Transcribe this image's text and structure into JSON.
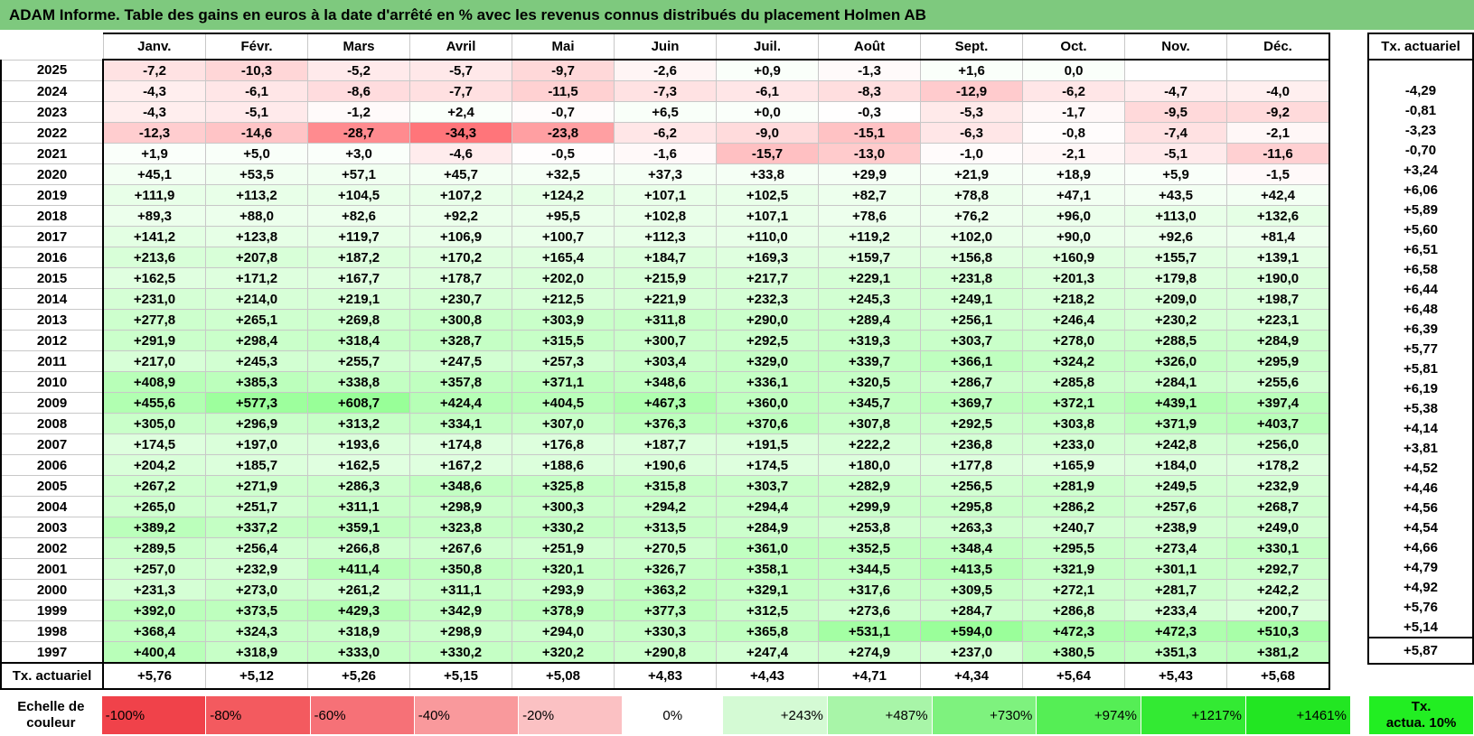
{
  "title": "ADAM Informe. Table des gains en euros à la date d'arrêté en % avec les revenus connus distribués du placement Holmen AB",
  "months": [
    "Janv.",
    "Févr.",
    "Mars",
    "Avril",
    "Mai",
    "Juin",
    "Juil.",
    "Août",
    "Sept.",
    "Oct.",
    "Nov.",
    "Déc."
  ],
  "rate_header": "Tx. actuariel",
  "rows": [
    {
      "year": "2025",
      "values": [
        "-7,2",
        "-10,3",
        "-5,2",
        "-5,7",
        "-9,7",
        "-2,6",
        "+0,9",
        "-1,3",
        "+1,6",
        "0,0",
        "",
        ""
      ],
      "rate": ""
    },
    {
      "year": "2024",
      "values": [
        "-4,3",
        "-6,1",
        "-8,6",
        "-7,7",
        "-11,5",
        "-7,3",
        "-6,1",
        "-8,3",
        "-12,9",
        "-6,2",
        "-4,7",
        "-4,0"
      ],
      "rate": "-4,29"
    },
    {
      "year": "2023",
      "values": [
        "-4,3",
        "-5,1",
        "-1,2",
        "+2,4",
        "-0,7",
        "+6,5",
        "+0,0",
        "-0,3",
        "-5,3",
        "-1,7",
        "-9,5",
        "-9,2"
      ],
      "rate": "-0,81"
    },
    {
      "year": "2022",
      "values": [
        "-12,3",
        "-14,6",
        "-28,7",
        "-34,3",
        "-23,8",
        "-6,2",
        "-9,0",
        "-15,1",
        "-6,3",
        "-0,8",
        "-7,4",
        "-2,1"
      ],
      "rate": "-3,23"
    },
    {
      "year": "2021",
      "values": [
        "+1,9",
        "+5,0",
        "+3,0",
        "-4,6",
        "-0,5",
        "-1,6",
        "-15,7",
        "-13,0",
        "-1,0",
        "-2,1",
        "-5,1",
        "-11,6"
      ],
      "rate": "-0,70"
    },
    {
      "year": "2020",
      "values": [
        "+45,1",
        "+53,5",
        "+57,1",
        "+45,7",
        "+32,5",
        "+37,3",
        "+33,8",
        "+29,9",
        "+21,9",
        "+18,9",
        "+5,9",
        "-1,5"
      ],
      "rate": "+3,24"
    },
    {
      "year": "2019",
      "values": [
        "+111,9",
        "+113,2",
        "+104,5",
        "+107,2",
        "+124,2",
        "+107,1",
        "+102,5",
        "+82,7",
        "+78,8",
        "+47,1",
        "+43,5",
        "+42,4"
      ],
      "rate": "+6,06"
    },
    {
      "year": "2018",
      "values": [
        "+89,3",
        "+88,0",
        "+82,6",
        "+92,2",
        "+95,5",
        "+102,8",
        "+107,1",
        "+78,6",
        "+76,2",
        "+96,0",
        "+113,0",
        "+132,6"
      ],
      "rate": "+5,89"
    },
    {
      "year": "2017",
      "values": [
        "+141,2",
        "+123,8",
        "+119,7",
        "+106,9",
        "+100,7",
        "+112,3",
        "+110,0",
        "+119,2",
        "+102,0",
        "+90,0",
        "+92,6",
        "+81,4"
      ],
      "rate": "+5,60"
    },
    {
      "year": "2016",
      "values": [
        "+213,6",
        "+207,8",
        "+187,2",
        "+170,2",
        "+165,4",
        "+184,7",
        "+169,3",
        "+159,7",
        "+156,8",
        "+160,9",
        "+155,7",
        "+139,1"
      ],
      "rate": "+6,51"
    },
    {
      "year": "2015",
      "values": [
        "+162,5",
        "+171,2",
        "+167,7",
        "+178,7",
        "+202,0",
        "+215,9",
        "+217,7",
        "+229,1",
        "+231,8",
        "+201,3",
        "+179,8",
        "+190,0"
      ],
      "rate": "+6,58"
    },
    {
      "year": "2014",
      "values": [
        "+231,0",
        "+214,0",
        "+219,1",
        "+230,7",
        "+212,5",
        "+221,9",
        "+232,3",
        "+245,3",
        "+249,1",
        "+218,2",
        "+209,0",
        "+198,7"
      ],
      "rate": "+6,44"
    },
    {
      "year": "2013",
      "values": [
        "+277,8",
        "+265,1",
        "+269,8",
        "+300,8",
        "+303,9",
        "+311,8",
        "+290,0",
        "+289,4",
        "+256,1",
        "+246,4",
        "+230,2",
        "+223,1"
      ],
      "rate": "+6,48"
    },
    {
      "year": "2012",
      "values": [
        "+291,9",
        "+298,4",
        "+318,4",
        "+328,7",
        "+315,5",
        "+300,7",
        "+292,5",
        "+319,3",
        "+303,7",
        "+278,0",
        "+288,5",
        "+284,9"
      ],
      "rate": "+6,39"
    },
    {
      "year": "2011",
      "values": [
        "+217,0",
        "+245,3",
        "+255,7",
        "+247,5",
        "+257,3",
        "+303,4",
        "+329,0",
        "+339,7",
        "+366,1",
        "+324,2",
        "+326,0",
        "+295,9"
      ],
      "rate": "+5,77"
    },
    {
      "year": "2010",
      "values": [
        "+408,9",
        "+385,3",
        "+338,8",
        "+357,8",
        "+371,1",
        "+348,6",
        "+336,1",
        "+320,5",
        "+286,7",
        "+285,8",
        "+284,1",
        "+255,6"
      ],
      "rate": "+5,81"
    },
    {
      "year": "2009",
      "values": [
        "+455,6",
        "+577,3",
        "+608,7",
        "+424,4",
        "+404,5",
        "+467,3",
        "+360,0",
        "+345,7",
        "+369,7",
        "+372,1",
        "+439,1",
        "+397,4"
      ],
      "rate": "+6,19"
    },
    {
      "year": "2008",
      "values": [
        "+305,0",
        "+296,9",
        "+313,2",
        "+334,1",
        "+307,0",
        "+376,3",
        "+370,6",
        "+307,8",
        "+292,5",
        "+303,8",
        "+371,9",
        "+403,7"
      ],
      "rate": "+5,38"
    },
    {
      "year": "2007",
      "values": [
        "+174,5",
        "+197,0",
        "+193,6",
        "+174,8",
        "+176,8",
        "+187,7",
        "+191,5",
        "+222,2",
        "+236,8",
        "+233,0",
        "+242,8",
        "+256,0"
      ],
      "rate": "+4,14"
    },
    {
      "year": "2006",
      "values": [
        "+204,2",
        "+185,7",
        "+162,5",
        "+167,2",
        "+188,6",
        "+190,6",
        "+174,5",
        "+180,0",
        "+177,8",
        "+165,9",
        "+184,0",
        "+178,2"
      ],
      "rate": "+3,81"
    },
    {
      "year": "2005",
      "values": [
        "+267,2",
        "+271,9",
        "+286,3",
        "+348,6",
        "+325,8",
        "+315,8",
        "+303,7",
        "+282,9",
        "+256,5",
        "+281,9",
        "+249,5",
        "+232,9"
      ],
      "rate": "+4,52"
    },
    {
      "year": "2004",
      "values": [
        "+265,0",
        "+251,7",
        "+311,1",
        "+298,9",
        "+300,3",
        "+294,2",
        "+294,4",
        "+299,9",
        "+295,8",
        "+286,2",
        "+257,6",
        "+268,7"
      ],
      "rate": "+4,46"
    },
    {
      "year": "2003",
      "values": [
        "+389,2",
        "+337,2",
        "+359,1",
        "+323,8",
        "+330,2",
        "+313,5",
        "+284,9",
        "+253,8",
        "+263,3",
        "+240,7",
        "+238,9",
        "+249,0"
      ],
      "rate": "+4,56"
    },
    {
      "year": "2002",
      "values": [
        "+289,5",
        "+256,4",
        "+266,8",
        "+267,6",
        "+251,9",
        "+270,5",
        "+361,0",
        "+352,5",
        "+348,4",
        "+295,5",
        "+273,4",
        "+330,1"
      ],
      "rate": "+4,54"
    },
    {
      "year": "2001",
      "values": [
        "+257,0",
        "+232,9",
        "+411,4",
        "+350,8",
        "+320,1",
        "+326,7",
        "+358,1",
        "+344,5",
        "+413,5",
        "+321,9",
        "+301,1",
        "+292,7"
      ],
      "rate": "+4,66"
    },
    {
      "year": "2000",
      "values": [
        "+231,3",
        "+273,0",
        "+261,2",
        "+311,1",
        "+293,9",
        "+363,2",
        "+329,1",
        "+317,6",
        "+309,5",
        "+272,1",
        "+281,7",
        "+242,2"
      ],
      "rate": "+4,79"
    },
    {
      "year": "1999",
      "values": [
        "+392,0",
        "+373,5",
        "+429,3",
        "+342,9",
        "+378,9",
        "+377,3",
        "+312,5",
        "+273,6",
        "+284,7",
        "+286,8",
        "+233,4",
        "+200,7"
      ],
      "rate": "+4,92"
    },
    {
      "year": "1998",
      "values": [
        "+368,4",
        "+324,3",
        "+318,9",
        "+298,9",
        "+294,0",
        "+330,3",
        "+365,8",
        "+531,1",
        "+594,0",
        "+472,3",
        "+472,3",
        "+510,3"
      ],
      "rate": "+5,76"
    },
    {
      "year": "1997",
      "values": [
        "+400,4",
        "+318,9",
        "+333,0",
        "+330,2",
        "+320,2",
        "+290,8",
        "+247,4",
        "+274,9",
        "+237,0",
        "+380,5",
        "+351,3",
        "+381,2"
      ],
      "rate": "+5,14"
    }
  ],
  "footer": {
    "label": "Tx. actuariel",
    "values": [
      "+5,76",
      "+5,12",
      "+5,26",
      "+5,15",
      "+5,08",
      "+4,83",
      "+4,43",
      "+4,71",
      "+4,34",
      "+5,64",
      "+5,43",
      "+5,68"
    ],
    "rate": "+5,87"
  },
  "scale": {
    "label_line1": "Echelle de",
    "label_line2": "couleur",
    "steps": [
      {
        "label": "-100%",
        "color": "#f0424a",
        "side": "neg"
      },
      {
        "label": "-80%",
        "color": "#f35a5f",
        "side": "neg"
      },
      {
        "label": "-60%",
        "color": "#f67177",
        "side": "neg"
      },
      {
        "label": "-40%",
        "color": "#f9999c",
        "side": "neg"
      },
      {
        "label": "-20%",
        "color": "#fbc1c3",
        "side": "neg"
      },
      {
        "label": "0%",
        "color": "#ffffff",
        "side": "zero"
      },
      {
        "label": "+243%",
        "color": "#d4fad4",
        "side": "pos"
      },
      {
        "label": "+487%",
        "color": "#a8f5a8",
        "side": "pos"
      },
      {
        "label": "+730%",
        "color": "#7ef27e",
        "side": "pos"
      },
      {
        "label": "+974%",
        "color": "#55ee55",
        "side": "pos"
      },
      {
        "label": "+1217%",
        "color": "#33ea33",
        "side": "pos"
      },
      {
        "label": "+1461%",
        "color": "#22e622",
        "side": "pos"
      }
    ],
    "act_line1": "Tx.",
    "act_line2": "actua. 10%"
  }
}
